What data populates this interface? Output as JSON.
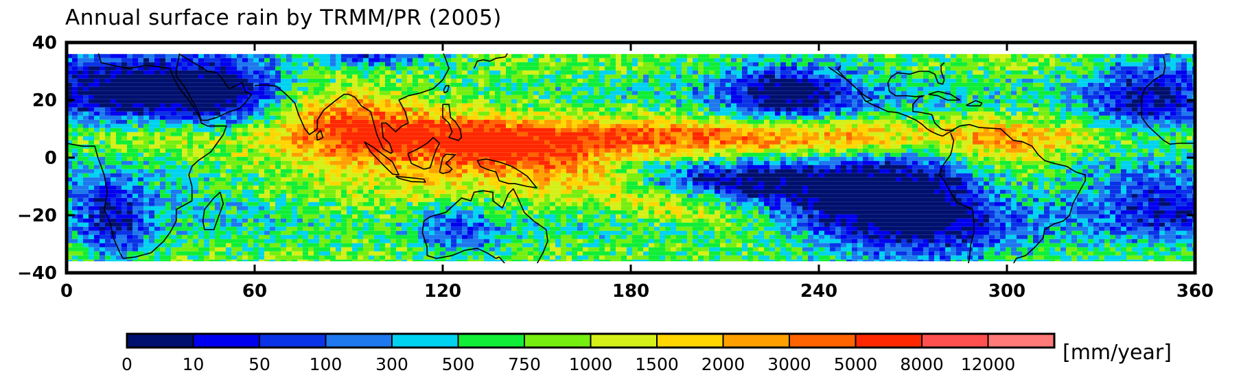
{
  "title": "Annual surface rain by TRMM/PR (2005)",
  "map": {
    "xlim": [
      0,
      360
    ],
    "ylim": [
      -40,
      40
    ],
    "data_extent_lat": [
      -36,
      36
    ],
    "x_ticks": [
      0,
      60,
      120,
      180,
      240,
      300,
      360
    ],
    "x_tick_labels": [
      "0",
      "60",
      "120",
      "180",
      "240",
      "300",
      "360"
    ],
    "y_ticks": [
      -40,
      -20,
      0,
      20,
      40
    ],
    "y_tick_labels": [
      "−40",
      "−20",
      "0",
      "20",
      "40"
    ],
    "coastlines": "black"
  },
  "colorbar": {
    "levels": [
      "0",
      "10",
      "50",
      "100",
      "300",
      "500",
      "750",
      "1000",
      "1500",
      "2000",
      "3000",
      "5000",
      "8000",
      "12000"
    ],
    "colors": [
      "#00106e",
      "#0000ee",
      "#0a32e6",
      "#1e78ee",
      "#00d2f0",
      "#10ee38",
      "#76ee10",
      "#d4f018",
      "#ffd600",
      "#ffa000",
      "#ff6400",
      "#ff2800",
      "#ff5050",
      "#ff7a78"
    ],
    "unit": "[mm/year]"
  }
}
